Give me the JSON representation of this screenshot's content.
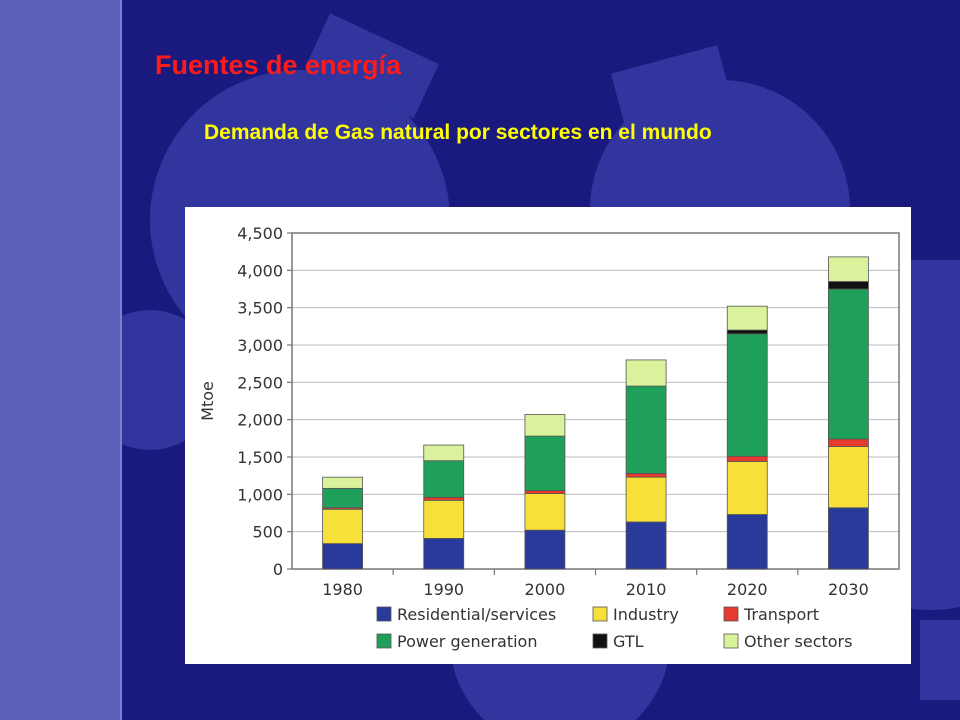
{
  "slide": {
    "title": "Fuentes de energía",
    "subtitle": "Demanda de Gas natural por sectores en el mundo"
  },
  "colors": {
    "background": "#1a1a7e",
    "sidebar": "#5a5fb8",
    "gear": "#3a3fa8",
    "title": "#ff1a1a",
    "subtitle": "#ffff00"
  },
  "chart_data": {
    "type": "bar",
    "stacked": true,
    "title": "",
    "xlabel": "",
    "ylabel": "Mtoe",
    "ylim": [
      0,
      4500
    ],
    "yticks": [
      0,
      500,
      1000,
      1500,
      2000,
      2500,
      3000,
      3500,
      4000,
      4500
    ],
    "ytick_labels": [
      "0",
      "500",
      "1,000",
      "1,500",
      "2,000",
      "2,500",
      "3,000",
      "3,500",
      "4,000",
      "4,500"
    ],
    "categories": [
      "1980",
      "1990",
      "2000",
      "2010",
      "2020",
      "2030"
    ],
    "series": [
      {
        "name": "Residential/services",
        "color": "#2a3a9a",
        "values": [
          340,
          410,
          520,
          630,
          730,
          820
        ]
      },
      {
        "name": "Industry",
        "color": "#f7e03a",
        "values": [
          460,
          510,
          490,
          600,
          710,
          820
        ]
      },
      {
        "name": "Transport",
        "color": "#e53b2e",
        "values": [
          20,
          40,
          40,
          50,
          70,
          100
        ]
      },
      {
        "name": "Power generation",
        "color": "#1fa05a",
        "values": [
          260,
          490,
          730,
          1170,
          1640,
          2010
        ]
      },
      {
        "name": "GTL",
        "color": "#111111",
        "values": [
          0,
          0,
          0,
          0,
          50,
          100
        ]
      },
      {
        "name": "Other sectors",
        "color": "#d9f29b",
        "values": [
          150,
          210,
          290,
          350,
          320,
          330
        ]
      }
    ],
    "legend_position": "bottom"
  }
}
